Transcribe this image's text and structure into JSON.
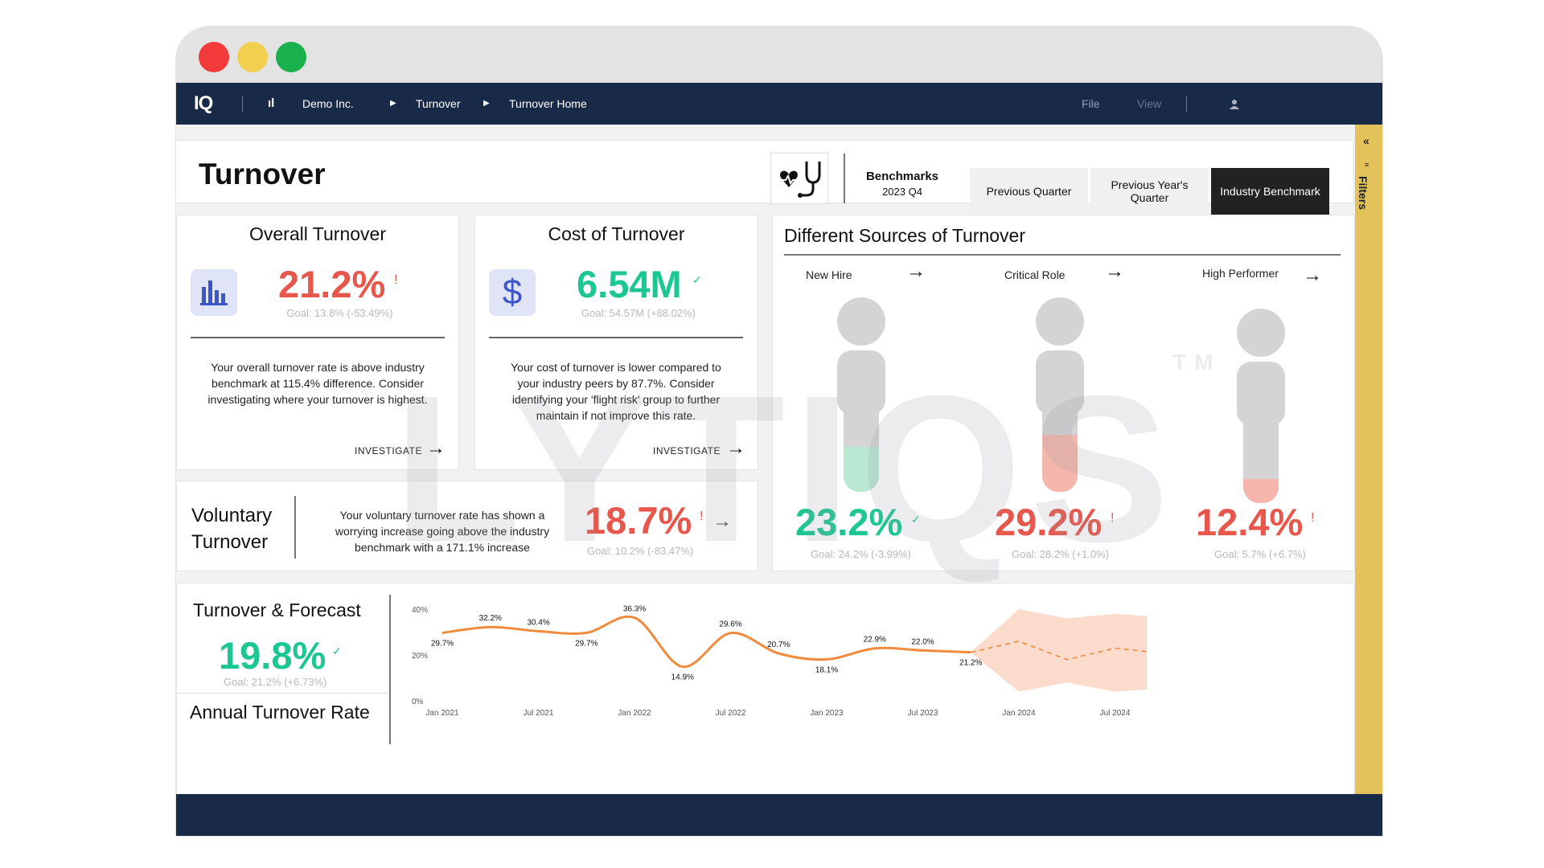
{
  "nav": {
    "logo": "IQ",
    "company": "Demo Inc.",
    "crumb1": "Turnover",
    "crumb2": "Turnover Home",
    "file": "File",
    "view": "View"
  },
  "page_title": "Turnover",
  "benchmarks": {
    "title": "Benchmarks",
    "period": "2023 Q4",
    "buttons": [
      "Previous Quarter",
      "Previous Year's Quarter",
      "Industry Benchmark"
    ]
  },
  "overall": {
    "title": "Overall Turnover",
    "value": "21.2%",
    "flag": "!",
    "goal": "Goal: 13.8% (-53.49%)",
    "desc": "Your overall turnover rate is above industry benchmark at 115.4% difference. Consider investigating where your turnover is highest.",
    "action": "INVESTIGATE"
  },
  "cost": {
    "title": "Cost of Turnover",
    "value": "6.54M",
    "flag": "✓",
    "goal": "Goal: 54.57M (+88.02%)",
    "desc": "Your cost of turnover is lower compared to your industry peers by 87.7%. Consider identifying your 'flight risk' group to further maintain if not improve this rate.",
    "action": "INVESTIGATE"
  },
  "voluntary": {
    "title1": "Voluntary",
    "title2": "Turnover",
    "desc": "Your voluntary turnover rate has shown a worrying increase going above the industry benchmark with a 171.1% increase",
    "value": "18.7%",
    "flag": "!",
    "goal": "Goal: 10.2% (-83.47%)"
  },
  "sources": {
    "title": "Different Sources of Turnover",
    "items": [
      {
        "label": "New Hire",
        "value": "23.2%",
        "flag": "✓",
        "goal": "Goal: 24.2% (-3.99%)",
        "fill": 0.232,
        "color": "#b9e8d3"
      },
      {
        "label": "Critical Role",
        "value": "29.2%",
        "flag": "!",
        "goal": "Goal: 28.2% (+1.0%)",
        "fill": 0.292,
        "color": "#f5b6ad"
      },
      {
        "label": "High Performer",
        "value": "12.4%",
        "flag": "!",
        "goal": "Goal: 5.7% (+6.7%)",
        "fill": 0.124,
        "color": "#f5b6ad"
      }
    ]
  },
  "forecast": {
    "title": "Turnover & Forecast",
    "value": "19.8%",
    "flag": "✓",
    "goal": "Goal: 21.2% (+6.73%)",
    "subtitle": "Annual Turnover Rate"
  },
  "watermark": "LYTIQS",
  "watermark_tm": "TM",
  "filters_label": "Filters",
  "colors": {
    "navy": "#182a48",
    "red": "#e8574c",
    "green": "#1dc792",
    "orange": "#f08a3c",
    "gold": "#e3c25c"
  },
  "chart_data": {
    "type": "line",
    "x_ticks": [
      "Jan 2021",
      "Jul 2021",
      "Jan 2022",
      "Jul 2022",
      "Jan 2023",
      "Jul 2023",
      "Jan 2024",
      "Jul 2024"
    ],
    "y_ticks": [
      "0%",
      "20%",
      "40%"
    ],
    "ylim": [
      0,
      40
    ],
    "series": [
      {
        "values": [
          {
            "x": "Jan 2021",
            "y": 29.7,
            "label": "29.7%"
          },
          {
            "x": "Apr 2021",
            "y": 32.2,
            "label": "32.2%"
          },
          {
            "x": "Jul 2021",
            "y": 30.4,
            "label": "30.4%"
          },
          {
            "x": "Oct 2021",
            "y": 29.7,
            "label": "29.7%"
          },
          {
            "x": "Jan 2022",
            "y": 36.3,
            "label": "36.3%"
          },
          {
            "x": "Apr 2022",
            "y": 14.9,
            "label": "14.9%"
          },
          {
            "x": "Jul 2022",
            "y": 29.6,
            "label": "29.6%"
          },
          {
            "x": "Oct 2022",
            "y": 20.7,
            "label": "20.7%"
          },
          {
            "x": "Jan 2023",
            "y": 18.1,
            "label": "18.1%"
          },
          {
            "x": "Apr 2023",
            "y": 22.9,
            "label": "22.9%"
          },
          {
            "x": "Jul 2023",
            "y": 22.0,
            "label": "22.0%"
          },
          {
            "x": "Oct 2023",
            "y": 21.2,
            "label": "21.2%"
          }
        ]
      }
    ],
    "forecast": {
      "values": [
        {
          "x": "Oct 2023",
          "y": 21.2,
          "lo": 21.2,
          "hi": 21.2
        },
        {
          "x": "Jan 2024",
          "y": 26,
          "lo": 4,
          "hi": 40
        },
        {
          "x": "Apr 2024",
          "y": 18,
          "lo": 8,
          "hi": 36
        },
        {
          "x": "Jul 2024",
          "y": 23,
          "lo": 4,
          "hi": 38
        },
        {
          "x": "Sep 2024",
          "y": 21.5,
          "lo": 5,
          "hi": 37
        }
      ]
    }
  }
}
